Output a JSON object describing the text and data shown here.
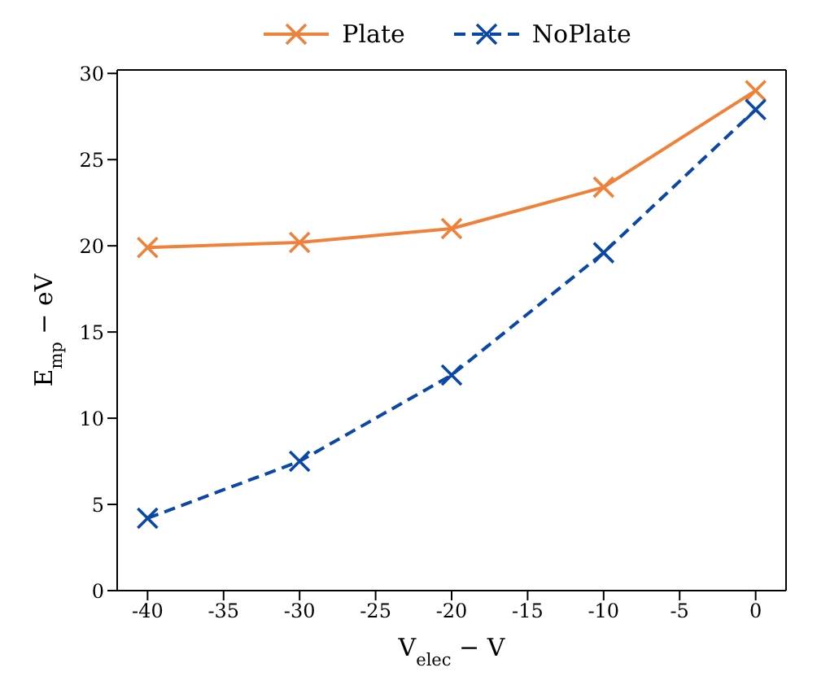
{
  "chart_data": {
    "type": "line",
    "xlabel": "V$_{elec}$ − V",
    "ylabel": "E$_{mp}$ − eV",
    "x": [
      -40,
      -30,
      -20,
      -10,
      0
    ],
    "series": [
      {
        "name": "Plate",
        "color": "#f0813a",
        "values": [
          19.9,
          20.2,
          21.0,
          23.4,
          29.0
        ],
        "line_style": "solid"
      },
      {
        "name": "NoPlate",
        "color": "#0a47a6",
        "values": [
          4.2,
          7.5,
          12.5,
          19.6,
          27.9
        ],
        "line_style": "dashed"
      }
    ],
    "xlim": [
      -42,
      2
    ],
    "xticks": [
      -40,
      -35,
      -30,
      -25,
      -20,
      -15,
      -10,
      -5,
      0
    ],
    "ylim": [
      0,
      30.2
    ],
    "yticks": [
      0,
      5,
      10,
      15,
      20,
      25,
      30
    ],
    "legend": "top",
    "marker": "cross"
  }
}
